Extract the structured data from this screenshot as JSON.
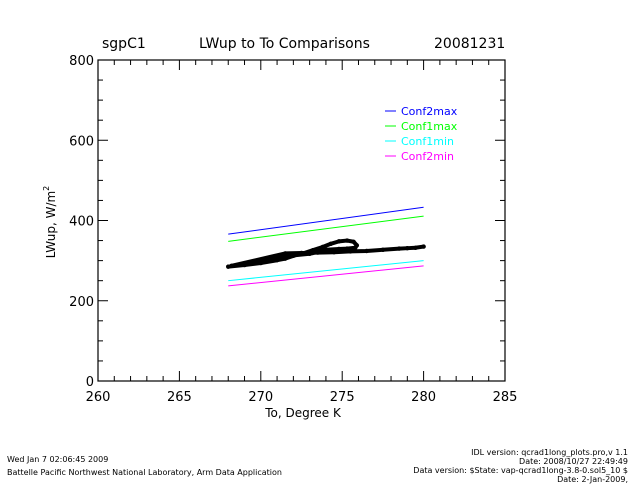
{
  "header": {
    "site": "sgpC1",
    "date": "20081231"
  },
  "chart_data": {
    "type": "scatter",
    "title": "LWup to To Comparisons",
    "xlabel": "To, Degree K",
    "ylabel": "LWup, W/m",
    "ylabel_superscript": "2",
    "xlim": [
      260,
      285
    ],
    "ylim": [
      0,
      800
    ],
    "xticks": [
      "260",
      "265",
      "270",
      "275",
      "280",
      "285"
    ],
    "yticks": [
      "0",
      "200",
      "400",
      "600",
      "800"
    ],
    "grid": false,
    "legend_position": "top-right",
    "series": [
      {
        "name": "Conf2max",
        "color": "#0000ff",
        "x": [
          268,
          280
        ],
        "y": [
          366,
          433
        ]
      },
      {
        "name": "Conf1max",
        "color": "#00ff00",
        "x": [
          268,
          280
        ],
        "y": [
          348,
          411
        ]
      },
      {
        "name": "Conf1min",
        "color": "#00ffff",
        "x": [
          268,
          280
        ],
        "y": [
          250,
          300
        ]
      },
      {
        "name": "Conf2min",
        "color": "#ff00ff",
        "x": [
          268,
          280
        ],
        "y": [
          237,
          287
        ]
      }
    ],
    "observations": {
      "color": "#000000",
      "points": [
        [
          268.0,
          285
        ],
        [
          269.0,
          289
        ],
        [
          270.0,
          294
        ],
        [
          271.0,
          301
        ],
        [
          271.5,
          305
        ],
        [
          272.0,
          312
        ],
        [
          272.6,
          318
        ],
        [
          273.2,
          326
        ],
        [
          273.8,
          334
        ],
        [
          274.3,
          342
        ],
        [
          274.8,
          348
        ],
        [
          275.3,
          350
        ],
        [
          275.7,
          347
        ],
        [
          275.9,
          338
        ],
        [
          275.8,
          332
        ],
        [
          275.3,
          330
        ],
        [
          274.8,
          329
        ],
        [
          274.0,
          327
        ],
        [
          273.5,
          321
        ],
        [
          273.0,
          317
        ],
        [
          272.0,
          313
        ],
        [
          271.0,
          306
        ],
        [
          270.0,
          298
        ],
        [
          269.0,
          291
        ],
        [
          268.2,
          287
        ],
        [
          271.5,
          318
        ],
        [
          272.5,
          319
        ],
        [
          273.5,
          320
        ],
        [
          274.5,
          321
        ],
        [
          275.5,
          323
        ],
        [
          276.5,
          324
        ],
        [
          277.5,
          327
        ],
        [
          278.5,
          330
        ],
        [
          279.0,
          331
        ],
        [
          279.5,
          332
        ],
        [
          280.0,
          335
        ]
      ]
    }
  },
  "footer": {
    "left_date": "Wed Jan  7 02:06:45 2009",
    "left_org": "Battelle Pacific Northwest National Laboratory, Arm Data Application",
    "right_lines": [
      "IDL version: qcrad1long_plots.pro,v 1.1",
      "Date: 2008/10/27 22:49:49",
      "Data version: $State: vap-qcrad1long-3.8-0.sol5_10 $",
      "Date: 2-Jan-2009,"
    ]
  }
}
